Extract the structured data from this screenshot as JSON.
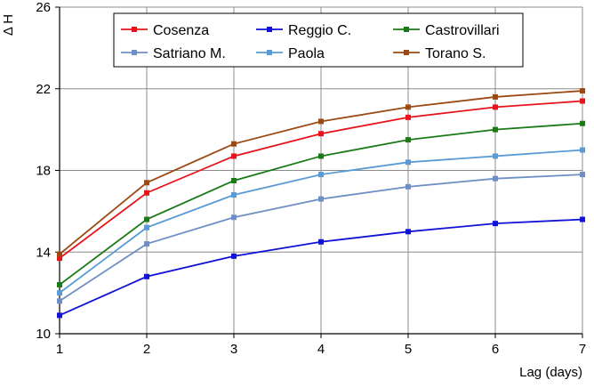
{
  "chart_data": {
    "type": "line",
    "title": "",
    "xlabel": "Lag (days)",
    "ylabel": "Δ H",
    "x": [
      1,
      2,
      3,
      4,
      5,
      6,
      7
    ],
    "xlim": [
      1,
      7
    ],
    "ylim": [
      10,
      26
    ],
    "yticks": [
      10,
      14,
      18,
      22,
      26
    ],
    "xticks": [
      1,
      2,
      3,
      4,
      5,
      6,
      7
    ],
    "grid": true,
    "legend_position": "top",
    "series": [
      {
        "name": "Cosenza",
        "color": "#e8131b",
        "values": [
          13.7,
          16.9,
          18.7,
          19.8,
          20.6,
          21.1,
          21.4
        ]
      },
      {
        "name": "Reggio C.",
        "color": "#1212d6",
        "values": [
          10.9,
          12.8,
          13.8,
          14.5,
          15.0,
          15.4,
          15.6
        ]
      },
      {
        "name": "Castrovillari",
        "color": "#1b7a17",
        "values": [
          12.4,
          15.6,
          17.5,
          18.7,
          19.5,
          20.0,
          20.3
        ]
      },
      {
        "name": "Satriano M.",
        "color": "#6e8fc4",
        "values": [
          11.6,
          14.4,
          15.7,
          16.6,
          17.2,
          17.6,
          17.8
        ]
      },
      {
        "name": "Paola",
        "color": "#5a9bd5",
        "values": [
          12.0,
          15.2,
          16.8,
          17.8,
          18.4,
          18.7,
          19.0
        ]
      },
      {
        "name": "Torano S.",
        "color": "#9c4a14",
        "values": [
          13.9,
          17.4,
          19.3,
          20.4,
          21.1,
          21.6,
          21.9
        ]
      }
    ]
  }
}
